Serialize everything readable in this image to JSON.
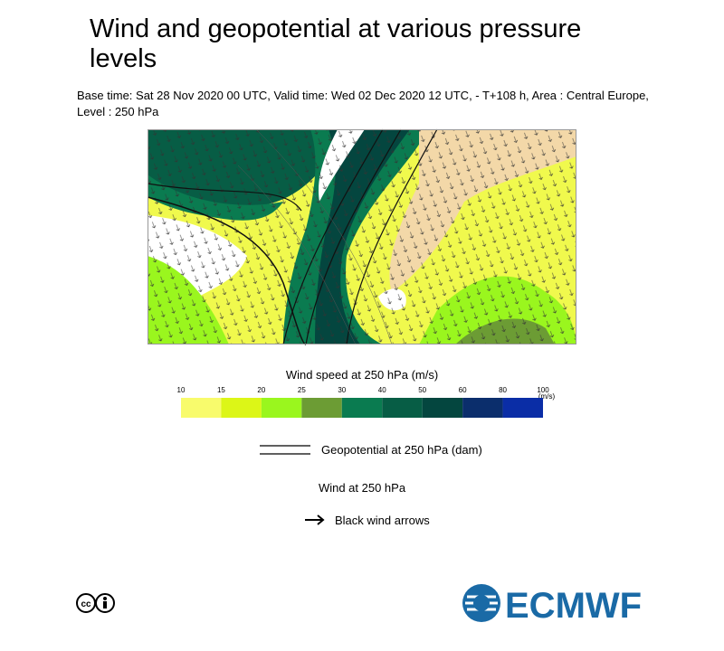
{
  "header": {
    "title": "Wind and geopotential at various pressure levels",
    "subtitle": "Base time: Sat 28 Nov 2020 00 UTC, Valid time: Wed 02 Dec 2020 12 UTC, - T+108 h, Area : Central Europe, Level : 250 hPa"
  },
  "colorbar": {
    "title": "Wind speed at 250 hPa (m/s)",
    "unit": "(m/s)",
    "ticks": [
      10,
      15,
      20,
      25,
      30,
      40,
      50,
      60,
      80,
      100
    ],
    "colors": [
      "#f8fb6c",
      "#dcf617",
      "#9af61e",
      "#6c9c34",
      "#0a7b50",
      "#075d45",
      "#04463f",
      "#0b2e6c",
      "#0a2da6"
    ]
  },
  "legend": {
    "geopotential": "Geopotential at 250 hPa (dam)",
    "wind_title": "Wind at 250 hPa",
    "wind_arrows": "Black wind arrows"
  },
  "footer": {
    "logo": "ECMWF"
  }
}
